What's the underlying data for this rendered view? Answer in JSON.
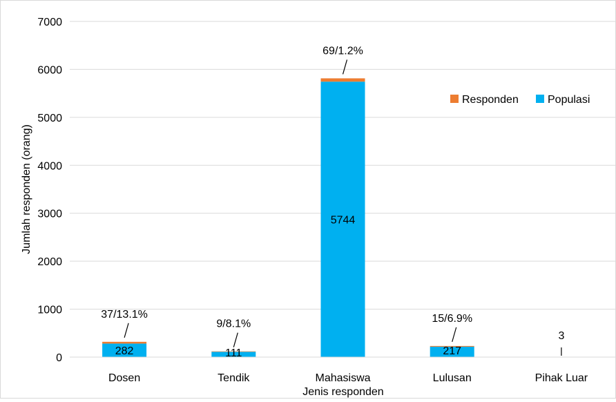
{
  "chart_data": {
    "type": "bar",
    "stacked": true,
    "title": "",
    "xlabel": "Jenis responden",
    "ylabel": "Jumlah responden (orang)",
    "ylim": [
      0,
      7000
    ],
    "yticks": [
      "0",
      "1000",
      "2000",
      "3000",
      "4000",
      "5000",
      "6000",
      "7000"
    ],
    "grid": true,
    "legend_position": "top-right",
    "categories": [
      "Dosen",
      "Tendik",
      "Mahasiswa",
      "Lulusan",
      "Pihak Luar"
    ],
    "series": [
      {
        "name": "Populasi",
        "color": "#00b0f0",
        "values": [
          282,
          111,
          5744,
          217,
          3
        ],
        "labels": [
          "282",
          "111",
          "5744",
          "217",
          "3"
        ]
      },
      {
        "name": "Responden",
        "color": "#ed7d31",
        "values": [
          37,
          9,
          69,
          15,
          0
        ],
        "labels": [
          "37/13.1%",
          "9/8.1%",
          "69/1.2%",
          "15/6.9%",
          ""
        ]
      }
    ]
  }
}
